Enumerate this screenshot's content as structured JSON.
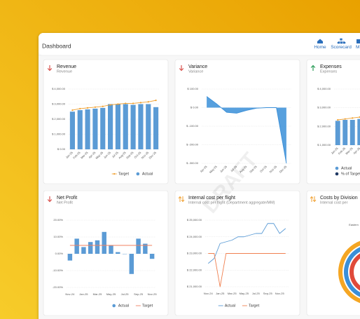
{
  "header": {
    "title": "Dashboard",
    "nav": [
      "Home",
      "Scorecard",
      "M"
    ]
  },
  "watermark": "DRAFT",
  "chart_data": [
    {
      "type": "combo",
      "title": "Revenue",
      "subtitle": "Revenue",
      "categories": [
        "Jan-25",
        "Feb-25",
        "Mar-25",
        "Apr-25",
        "May-25",
        "Jun-25",
        "Jul-25",
        "Aug-25",
        "Sep-25",
        "Oct-25",
        "Nov-25",
        "Dec-25"
      ],
      "series": [
        {
          "name": "Target",
          "kind": "line",
          "color": "#f0a030",
          "markers": true,
          "values": [
            2600,
            2700,
            2750,
            2800,
            2850,
            2950,
            3000,
            3050,
            3050,
            3100,
            3150,
            3250
          ]
        },
        {
          "name": "Actual",
          "kind": "bar",
          "color": "#5b9bd5",
          "values": [
            2500,
            2600,
            2650,
            2700,
            2750,
            3000,
            3000,
            3000,
            2950,
            3000,
            3000,
            2800
          ]
        }
      ],
      "ylim": [
        0,
        4000
      ],
      "yticks": [
        {
          "value": 0,
          "label": "$ 0.00"
        },
        {
          "value": 1000,
          "label": "$ 1,000.00"
        },
        {
          "value": 2000,
          "label": "$ 2,000.00"
        },
        {
          "value": 3000,
          "label": "$ 3,000.00"
        },
        {
          "value": 4000,
          "label": "$ 4,000.00"
        }
      ],
      "grid": true
    },
    {
      "type": "area",
      "title": "Variance",
      "subtitle": "Variance",
      "categories": [
        "Apr-25",
        "May-25",
        "Jun-25",
        "Jul-25",
        "Aug-25",
        "Sep-25",
        "Oct-25",
        "Nov-25",
        "Dec-25"
      ],
      "series": [
        {
          "kind": "area",
          "color": "#3a8fd8",
          "values": [
            60,
            20,
            -25,
            -30,
            -15,
            -3,
            0,
            0,
            -300
          ]
        }
      ],
      "ylim": [
        -300,
        100
      ],
      "yticks": [
        {
          "value": -300,
          "label": "$ -300.00"
        },
        {
          "value": -200,
          "label": "$ -200.00"
        },
        {
          "value": -100,
          "label": "$ -100.00"
        },
        {
          "value": 0,
          "label": "$ 0.00"
        },
        {
          "value": 100,
          "label": "$ 100.00"
        }
      ],
      "grid": true
    },
    {
      "type": "combo",
      "title": "Expenses",
      "subtitle": "Expenses",
      "categories": [
        "Jan-25",
        "Feb-25",
        "Mar-25",
        "Apr-25"
      ],
      "series": [
        {
          "name": "Actual",
          "kind": "bar",
          "color": "#5b9bd5",
          "values": [
            2300,
            2350,
            2350,
            2400
          ]
        },
        {
          "name": "% of Target",
          "kind": "line",
          "color": "#1f3864",
          "line_color": "#f0a030",
          "markers": true,
          "values": [
            2350,
            2400,
            2450,
            2500
          ]
        }
      ],
      "ylim": [
        1000,
        4000
      ],
      "yticks": [
        {
          "value": 1000,
          "label": "$ 1,000.00"
        },
        {
          "value": 2000,
          "label": "$ 2,000.00"
        },
        {
          "value": 3000,
          "label": "$ 3,000.00"
        },
        {
          "value": 4000,
          "label": "$ 4,000.00"
        }
      ],
      "grid": true
    },
    {
      "type": "combo",
      "title": "Net Profit",
      "subtitle": "Net Profit",
      "categories": [
        "Nov-24",
        null,
        "Jan-25",
        null,
        "Mar-25",
        null,
        "May-25",
        null,
        "Jul-25",
        null,
        "Sep-25",
        null,
        "Nov-25"
      ],
      "series": [
        {
          "name": "Actual",
          "kind": "bar",
          "color": "#5b9bd5",
          "values": [
            -4,
            9,
            4,
            7,
            8,
            13,
            5,
            1,
            0,
            -12,
            9,
            6,
            -3
          ]
        },
        {
          "name": "Target",
          "kind": "line",
          "color": "#f08060",
          "values": [
            5,
            5,
            5,
            5,
            5,
            5,
            5,
            5,
            5,
            5,
            5,
            5,
            5
          ]
        }
      ],
      "ylim": [
        -20,
        20
      ],
      "yticks": [
        {
          "value": -20,
          "label": "-20.00%"
        },
        {
          "value": -10,
          "label": "-10.00%"
        },
        {
          "value": 0,
          "label": "0.00%"
        },
        {
          "value": 10,
          "label": "10.00%"
        },
        {
          "value": 20,
          "label": "20.00%"
        }
      ],
      "grid": true
    },
    {
      "type": "line",
      "title": "Internal cost per flight",
      "subtitle": "Internal cost per flight (Department aggregate/MM)",
      "categories": [
        "Nov-24",
        null,
        "Jan-25",
        null,
        "Mar-25",
        null,
        "May-25",
        null,
        "Jul-25",
        null,
        "Sep-25",
        null,
        "Nov-25",
        null
      ],
      "series": [
        {
          "name": "Actual",
          "kind": "line",
          "color": "#5b9bd5",
          "values": [
            22400,
            22700,
            23600,
            23700,
            23800,
            24000,
            24000,
            24100,
            24200,
            24200,
            24800,
            24800,
            24200,
            24500
          ]
        },
        {
          "name": "Target",
          "kind": "line",
          "color": "#f08050",
          "values": [
            23000,
            23000,
            21000,
            23000,
            23000,
            23000,
            23000,
            23000,
            23000,
            23000,
            23000,
            23000,
            23000,
            23000
          ]
        }
      ],
      "ylim": [
        21000,
        25000
      ],
      "yticks": [
        {
          "value": 21000,
          "label": "$ 21,000.00"
        },
        {
          "value": 22000,
          "label": "$ 22,000.00"
        },
        {
          "value": 23000,
          "label": "$ 23,000.00"
        },
        {
          "value": 24000,
          "label": "$ 24,000.00"
        },
        {
          "value": 25000,
          "label": "$ 25,000.00"
        }
      ],
      "grid": true
    },
    {
      "type": "radial",
      "title": "Costs by Division",
      "subtitle": "Internal cost per",
      "categories": [
        "Eastern",
        null,
        null
      ],
      "values": [
        75,
        60,
        50
      ],
      "colors": [
        "#f5a623",
        "#3a8fd8",
        "#e04a3a"
      ],
      "ylim": [
        0,
        100
      ]
    }
  ]
}
